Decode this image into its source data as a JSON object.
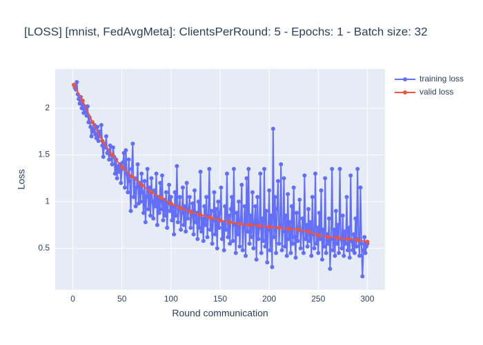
{
  "chart_data": {
    "type": "line",
    "title": "[LOSS] [mnist, FedAvgMeta]: ClientsPerRound: 5 - Epochs: 1 - Batch size: 32",
    "x_label": "Round communication",
    "y_label": "Loss",
    "xlim": [
      -18,
      318
    ],
    "ylim": [
      0.056,
      2.42
    ],
    "xticks": [
      0,
      50,
      100,
      150,
      200,
      250,
      300
    ],
    "yticks": [
      0.5,
      1,
      {
        "value": 1.5,
        "label": "1.5"
      },
      2
    ],
    "grid": true,
    "legend": "top-right",
    "series": [
      {
        "name": "training loss",
        "color": "#636efa",
        "x": [
          1,
          2,
          3,
          4,
          5,
          6,
          7,
          8,
          9,
          10,
          11,
          12,
          13,
          14,
          15,
          16,
          17,
          18,
          19,
          20,
          21,
          22,
          23,
          24,
          25,
          26,
          27,
          28,
          29,
          30,
          31,
          32,
          33,
          34,
          35,
          36,
          37,
          38,
          39,
          40,
          41,
          42,
          43,
          44,
          45,
          46,
          47,
          48,
          49,
          50,
          51,
          52,
          53,
          54,
          55,
          56,
          57,
          58,
          59,
          60,
          61,
          62,
          63,
          64,
          65,
          66,
          67,
          68,
          69,
          70,
          71,
          72,
          73,
          74,
          75,
          76,
          77,
          78,
          79,
          80,
          81,
          82,
          83,
          84,
          85,
          86,
          87,
          88,
          89,
          90,
          91,
          92,
          93,
          94,
          95,
          96,
          97,
          98,
          99,
          100,
          101,
          102,
          103,
          104,
          105,
          106,
          107,
          108,
          109,
          110,
          111,
          112,
          113,
          114,
          115,
          116,
          117,
          118,
          119,
          120,
          121,
          122,
          123,
          124,
          125,
          126,
          127,
          128,
          129,
          130,
          131,
          132,
          133,
          134,
          135,
          136,
          137,
          138,
          139,
          140,
          141,
          142,
          143,
          144,
          145,
          146,
          147,
          148,
          149,
          150,
          151,
          152,
          153,
          154,
          155,
          156,
          157,
          158,
          159,
          160,
          161,
          162,
          163,
          164,
          165,
          166,
          167,
          168,
          169,
          170,
          171,
          172,
          173,
          174,
          175,
          176,
          177,
          178,
          179,
          180,
          181,
          182,
          183,
          184,
          185,
          186,
          187,
          188,
          189,
          190,
          191,
          192,
          193,
          194,
          195,
          196,
          197,
          198,
          199,
          200,
          201,
          202,
          203,
          204,
          205,
          206,
          207,
          208,
          209,
          210,
          211,
          212,
          213,
          214,
          215,
          216,
          217,
          218,
          219,
          220,
          221,
          222,
          223,
          224,
          225,
          226,
          227,
          228,
          229,
          230,
          231,
          232,
          233,
          234,
          235,
          236,
          237,
          238,
          239,
          240,
          241,
          242,
          243,
          244,
          245,
          246,
          247,
          248,
          249,
          250,
          251,
          252,
          253,
          254,
          255,
          256,
          257,
          258,
          259,
          260,
          261,
          262,
          263,
          264,
          265,
          266,
          267,
          268,
          269,
          270,
          271,
          272,
          273,
          274,
          275,
          276,
          277,
          278,
          279,
          280,
          281,
          282,
          283,
          284,
          285,
          286,
          287,
          288,
          289,
          290,
          291,
          292,
          293,
          294,
          295,
          296,
          297,
          298,
          299,
          300
        ],
        "values": [
          2.25,
          2.22,
          2.2,
          2.28,
          2.15,
          2.1,
          2.05,
          2.12,
          2.0,
          2.08,
          1.95,
          2.02,
          1.98,
          1.92,
          2.02,
          1.85,
          1.9,
          1.8,
          1.7,
          1.78,
          1.75,
          1.82,
          1.72,
          1.68,
          1.8,
          1.65,
          1.75,
          1.7,
          1.82,
          1.6,
          1.48,
          1.62,
          1.58,
          1.7,
          1.52,
          1.55,
          1.45,
          1.6,
          1.5,
          1.4,
          1.58,
          1.48,
          1.3,
          1.45,
          1.25,
          1.38,
          1.32,
          1.4,
          1.2,
          1.35,
          1.42,
          1.52,
          1.15,
          1.55,
          1.3,
          1.1,
          1.45,
          1.22,
          0.9,
          1.35,
          1.62,
          1.05,
          1.25,
          0.95,
          1.15,
          1.4,
          0.98,
          1.2,
          1.0,
          1.3,
          1.1,
          0.88,
          1.22,
          0.78,
          1.05,
          1.35,
          0.92,
          1.15,
          0.85,
          1.25,
          1.0,
          0.82,
          1.12,
          0.95,
          1.3,
          0.75,
          1.05,
          0.88,
          1.2,
          0.92,
          1.28,
          0.8,
          1.02,
          0.85,
          1.1,
          0.72,
          0.98,
          1.18,
          0.9,
          1.05,
          0.8,
          0.95,
          0.65,
          1.1,
          0.85,
          1.38,
          0.78,
          0.92,
          1.05,
          0.7,
          0.88,
          1.15,
          0.75,
          0.95,
          0.68,
          1.2,
          0.82,
          0.9,
          1.05,
          0.72,
          0.85,
          0.98,
          0.65,
          1.12,
          0.78,
          0.88,
          0.6,
          1.0,
          0.72,
          1.32,
          0.68,
          0.82,
          0.58,
          0.95,
          0.75,
          1.05,
          0.62,
          0.85,
          1.35,
          0.7,
          0.9,
          0.55,
          0.8,
          1.1,
          0.65,
          0.92,
          0.5,
          1.0,
          0.72,
          0.88,
          1.15,
          0.6,
          0.78,
          0.48,
          0.95,
          0.7,
          1.3,
          0.62,
          0.85,
          0.55,
          0.92,
          1.05,
          0.58,
          1.35,
          0.75,
          0.45,
          0.88,
          0.65,
          1.0,
          0.52,
          0.8,
          1.18,
          0.48,
          0.72,
          0.95,
          0.42,
          1.25,
          0.68,
          1.35,
          0.55,
          0.85,
          0.62,
          1.1,
          0.5,
          0.78,
          0.95,
          0.38,
          1.05,
          0.6,
          0.72,
          1.3,
          0.45,
          0.82,
          0.58,
          1.35,
          0.52,
          0.9,
          0.35,
          0.7,
          1.12,
          0.48,
          0.85,
          0.3,
          1.78,
          0.62,
          1.05,
          0.45,
          0.92,
          1.22,
          0.55,
          0.75,
          1.4,
          0.48,
          0.68,
          1.25,
          0.52,
          0.85,
          0.42,
          1.08,
          0.6,
          0.78,
          0.45,
          0.95,
          0.55,
          1.15,
          0.62,
          0.4,
          0.88,
          0.58,
          0.72,
          1.02,
          0.5,
          0.68,
          0.82,
          0.45,
          1.28,
          0.6,
          0.75,
          0.52,
          0.92,
          0.58,
          0.78,
          0.42,
          1.05,
          0.65,
          0.5,
          1.3,
          0.55,
          0.72,
          0.45,
          0.88,
          0.6,
          1.12,
          0.38,
          0.7,
          0.52,
          1.25,
          0.45,
          0.65,
          0.55,
          0.82,
          0.28,
          0.6,
          1.35,
          0.48,
          0.7,
          0.42,
          0.9,
          0.55,
          0.75,
          0.45,
          1.35,
          0.6,
          0.5,
          0.85,
          0.42,
          0.68,
          0.55,
          1.05,
          0.48,
          0.72,
          0.4,
          1.28,
          0.58,
          0.48,
          0.65,
          0.45,
          0.82,
          0.52,
          1.35,
          0.6,
          0.42,
          1.15,
          0.55,
          0.2,
          0.48,
          0.62,
          0.45,
          0.52,
          0.55
        ]
      },
      {
        "name": "valid loss",
        "color": "#ef553b",
        "x": [
          1,
          10,
          20,
          30,
          40,
          50,
          60,
          70,
          80,
          90,
          100,
          110,
          120,
          130,
          140,
          150,
          160,
          170,
          180,
          190,
          200,
          210,
          220,
          230,
          240,
          250,
          260,
          270,
          280,
          290,
          300
        ],
        "values": [
          2.25,
          2.08,
          1.85,
          1.65,
          1.5,
          1.37,
          1.27,
          1.18,
          1.1,
          1.04,
          0.98,
          0.93,
          0.89,
          0.86,
          0.83,
          0.8,
          0.78,
          0.76,
          0.75,
          0.74,
          0.73,
          0.72,
          0.71,
          0.7,
          0.68,
          0.64,
          0.62,
          0.61,
          0.6,
          0.59,
          0.57
        ]
      }
    ]
  }
}
